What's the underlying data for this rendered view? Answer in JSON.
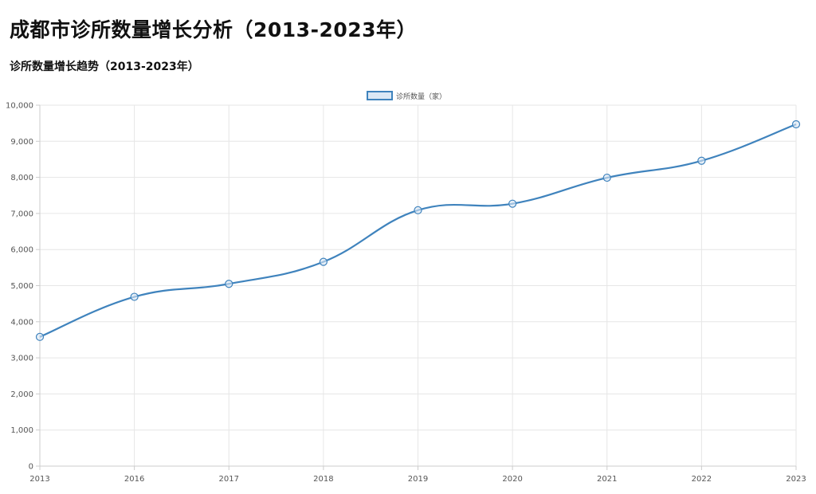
{
  "header": {
    "title": "成都市诊所数量增长分析（2013-2023年）"
  },
  "chart_data": {
    "type": "line",
    "title": "诊所数量增长趋势（2013-2023年）",
    "xlabel": "",
    "ylabel": "",
    "categories": [
      "2013",
      "2016",
      "2017",
      "2018",
      "2019",
      "2020",
      "2021",
      "2022",
      "2023"
    ],
    "series": [
      {
        "name": "诊所数量（家）",
        "values": [
          3580,
          4690,
          5050,
          5660,
          7090,
          7270,
          7990,
          8460,
          9470
        ]
      }
    ],
    "ylim": [
      0,
      10000
    ],
    "yticks": [
      0,
      1000,
      2000,
      3000,
      4000,
      5000,
      6000,
      7000,
      8000,
      9000,
      10000
    ],
    "grid": true,
    "legend_position": "top-center",
    "colors": {
      "line": "#3f83bd",
      "fill": "#dbe8f5",
      "grid": "#e6e6e6",
      "axis": "#cccccc",
      "tick_text": "#555555"
    }
  }
}
